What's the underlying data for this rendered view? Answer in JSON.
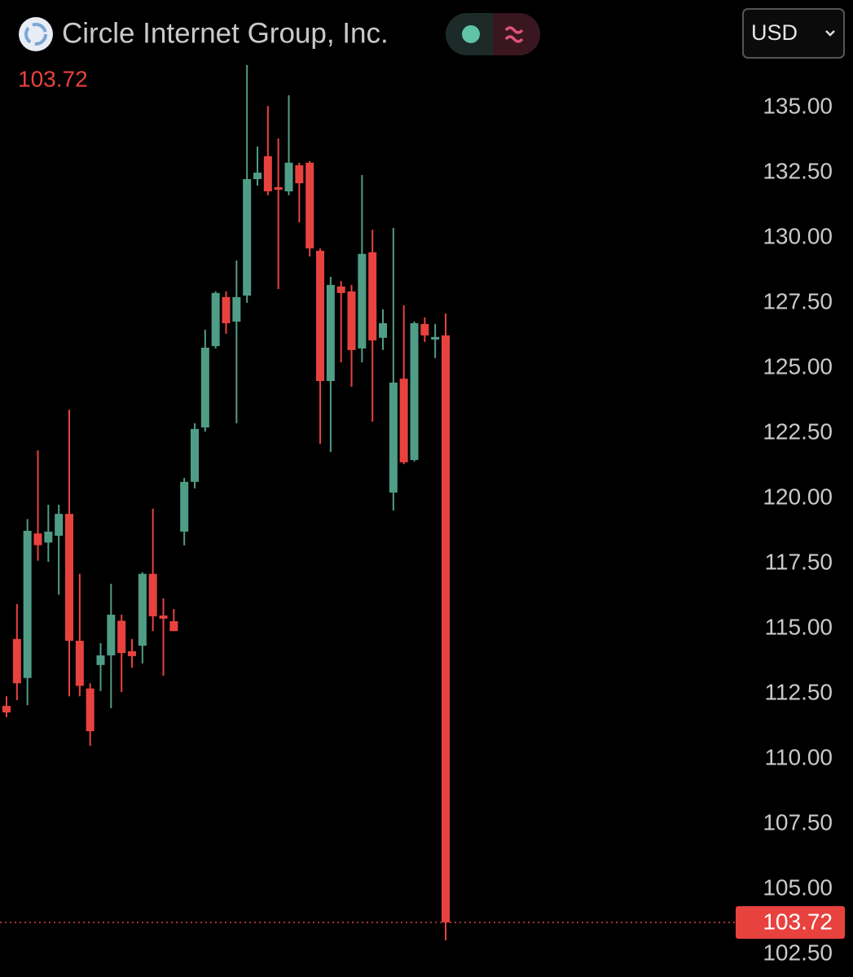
{
  "chart_data": {
    "type": "candlestick",
    "title": "Circle Internet Group, Inc.",
    "currency": "USD",
    "last_price": 103.72,
    "up_color": "#4f9d86",
    "down_color": "#e8423f",
    "open": [
      112.03,
      114.6,
      113.1,
      118.65,
      118.3,
      118.56,
      119.4,
      114.53,
      112.7,
      113.6,
      113.97,
      115.3,
      114.13,
      114.34,
      117.1,
      115.5,
      115.28,
      118.72,
      120.63,
      122.72,
      125.84,
      127.72,
      126.78,
      127.78,
      132.25,
      133.13,
      131.94,
      131.78,
      132.78,
      132.88,
      129.5,
      124.5,
      128.13,
      127.94,
      125.75,
      129.44,
      126.16,
      120.22,
      124.59,
      121.47,
      126.69,
      126.09,
      126.25
    ],
    "high": [
      112.4,
      115.94,
      119.2,
      121.84,
      119.75,
      119.75,
      123.4,
      117.1,
      112.9,
      114.44,
      116.72,
      115.53,
      114.6,
      117.16,
      119.6,
      116.16,
      115.75,
      120.78,
      122.88,
      126.47,
      127.94,
      127.94,
      129.13,
      136.63,
      133.5,
      135.06,
      133.81,
      135.47,
      132.88,
      132.94,
      129.59,
      128.5,
      128.34,
      128.19,
      132.41,
      130.31,
      127.25,
      130.38,
      127.41,
      126.78,
      126.94,
      126.69,
      127.09
    ],
    "low": [
      111.6,
      112.25,
      112.06,
      117.6,
      117.56,
      116.3,
      112.4,
      112.4,
      110.5,
      112.6,
      111.94,
      112.56,
      113.5,
      113.66,
      114.9,
      113.19,
      114.9,
      118.19,
      120.38,
      122.56,
      125.75,
      126.31,
      122.88,
      127.5,
      132.0,
      131.63,
      128.03,
      131.63,
      130.59,
      129.28,
      122.09,
      121.78,
      125.22,
      124.28,
      125.22,
      122.94,
      125.69,
      119.53,
      121.31,
      121.41,
      126.0,
      125.38,
      103.03
    ],
    "close": [
      111.78,
      112.9,
      118.75,
      118.2,
      118.72,
      119.4,
      114.53,
      112.8,
      111.06,
      113.97,
      115.53,
      114.06,
      113.94,
      117.1,
      115.47,
      115.38,
      114.9,
      120.63,
      122.66,
      125.78,
      127.88,
      126.72,
      127.72,
      132.25,
      132.5,
      131.78,
      131.84,
      132.88,
      132.09,
      129.59,
      124.5,
      128.19,
      127.88,
      125.69,
      129.38,
      126.06,
      126.72,
      124.44,
      121.38,
      126.72,
      126.25,
      126.19,
      103.72
    ],
    "ylim": [
      101.625,
      136.9375
    ],
    "yticks": [
      {
        "value": 135,
        "label": "135.00"
      },
      {
        "value": 132.5,
        "label": "132.50"
      },
      {
        "value": 130,
        "label": "130.00"
      },
      {
        "value": 127.5,
        "label": "127.50"
      },
      {
        "value": 125,
        "label": "125.00"
      },
      {
        "value": 122.5,
        "label": "122.50"
      },
      {
        "value": 120,
        "label": "120.00"
      },
      {
        "value": 117.5,
        "label": "117.50"
      },
      {
        "value": 115,
        "label": "115.00"
      },
      {
        "value": 112.5,
        "label": "112.50"
      },
      {
        "value": 110,
        "label": "110.00"
      },
      {
        "value": 107.5,
        "label": "107.50"
      },
      {
        "value": 105,
        "label": "105.00"
      },
      {
        "value": 102.5,
        "label": "102.50"
      }
    ]
  }
}
